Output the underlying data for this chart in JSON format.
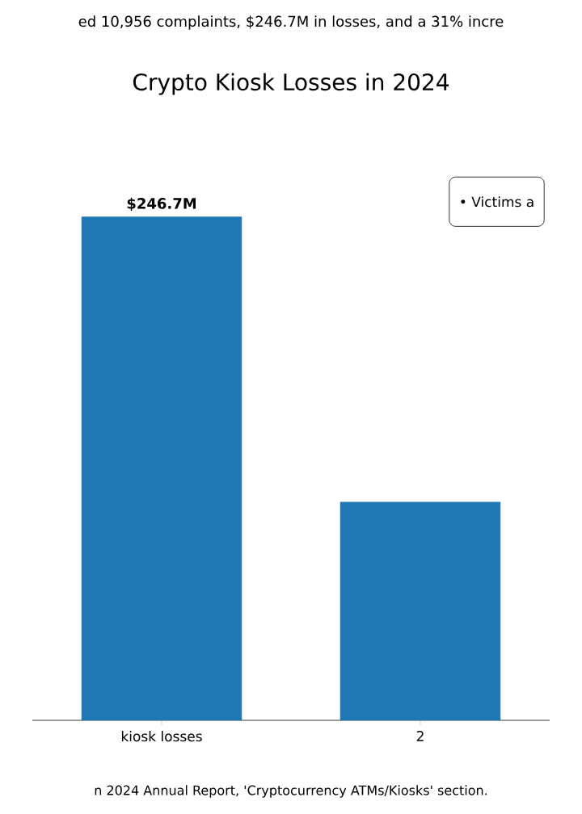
{
  "chart_data": {
    "type": "bar",
    "title": "Crypto Kiosk Losses in 2024",
    "subtitle": "ed 10,956 complaints, $246.7M in losses, and a 31% incre",
    "categories": [
      "kiosk losses",
      "2"
    ],
    "values": [
      246.7,
      107
    ],
    "value_labels": [
      "$246.7M",
      null
    ],
    "color": "#1f77b4",
    "annotations": [
      "• Victims a",
      "n 2024 Annual Report, 'Cryptocurrency ATMs/Kiosks' section."
    ]
  }
}
